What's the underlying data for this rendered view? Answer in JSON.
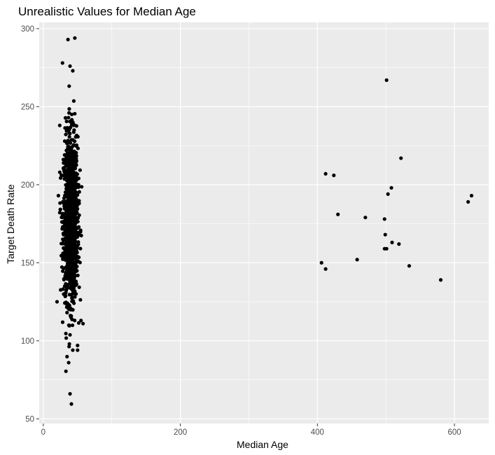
{
  "chart_data": {
    "type": "scatter",
    "title": "Unrealistic Values for Median Age",
    "xlabel": "Median Age",
    "ylabel": "Target Death Rate",
    "xlim": [
      -6,
      650
    ],
    "ylim": [
      47,
      304
    ],
    "x_ticks": [
      0,
      200,
      400,
      600
    ],
    "y_ticks": [
      50,
      100,
      150,
      200,
      250,
      300
    ],
    "x_tick_labels": [
      "0",
      "200",
      "400",
      "600"
    ],
    "y_tick_labels": [
      "50",
      "100",
      "150",
      "200",
      "250",
      "300"
    ],
    "grid": true,
    "point_color": "#000000",
    "panel_color": "#ebebeb",
    "grid_color": "#ffffff",
    "main_cluster": {
      "description_x_range": [
        22,
        58
      ],
      "center_x": 40,
      "center_y": 178,
      "count": 1400
    },
    "outliers_in_cluster_column": [
      {
        "x": 36,
        "y": 293
      },
      {
        "x": 46,
        "y": 294
      },
      {
        "x": 28,
        "y": 278
      },
      {
        "x": 39,
        "y": 276
      },
      {
        "x": 43,
        "y": 273
      },
      {
        "x": 33,
        "y": 80.5
      },
      {
        "x": 39,
        "y": 66
      },
      {
        "x": 41,
        "y": 59.5
      },
      {
        "x": 38,
        "y": 98
      },
      {
        "x": 50,
        "y": 97
      },
      {
        "x": 43,
        "y": 94
      },
      {
        "x": 50,
        "y": 94
      },
      {
        "x": 20,
        "y": 125
      },
      {
        "x": 24,
        "y": 238
      },
      {
        "x": 58,
        "y": 111
      },
      {
        "x": 55,
        "y": 113
      },
      {
        "x": 22,
        "y": 193
      }
    ],
    "points": [
      {
        "x": 501,
        "y": 267
      },
      {
        "x": 522,
        "y": 217
      },
      {
        "x": 412,
        "y": 207
      },
      {
        "x": 424,
        "y": 206
      },
      {
        "x": 508,
        "y": 198
      },
      {
        "x": 503,
        "y": 194
      },
      {
        "x": 625,
        "y": 193
      },
      {
        "x": 620,
        "y": 189
      },
      {
        "x": 430,
        "y": 181
      },
      {
        "x": 470,
        "y": 179
      },
      {
        "x": 498,
        "y": 178
      },
      {
        "x": 499,
        "y": 168
      },
      {
        "x": 509,
        "y": 163
      },
      {
        "x": 519,
        "y": 162
      },
      {
        "x": 498,
        "y": 159
      },
      {
        "x": 501,
        "y": 159
      },
      {
        "x": 458,
        "y": 152
      },
      {
        "x": 406,
        "y": 150
      },
      {
        "x": 534,
        "y": 148
      },
      {
        "x": 412,
        "y": 146
      },
      {
        "x": 580,
        "y": 139
      }
    ]
  }
}
